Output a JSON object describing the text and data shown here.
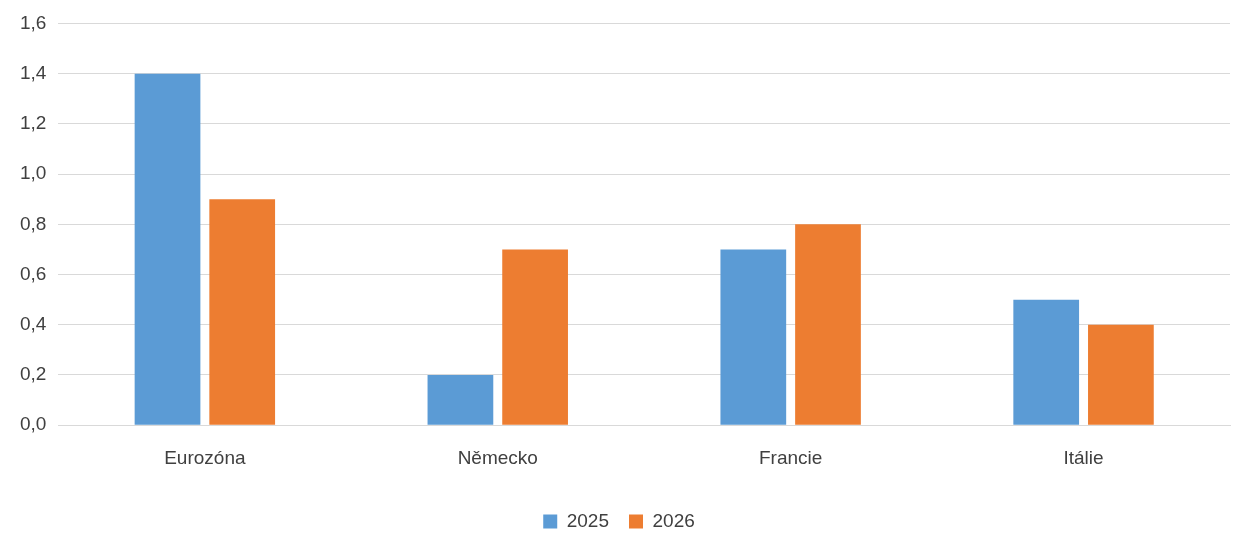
{
  "chart_data": {
    "type": "bar",
    "categories": [
      "Eurozóna",
      "Německo",
      "Francie",
      "Itálie"
    ],
    "series": [
      {
        "name": "2025",
        "color": "#5b9bd5",
        "values": [
          1.4,
          0.2,
          0.7,
          0.5
        ]
      },
      {
        "name": "2026",
        "color": "#ed7d31",
        "values": [
          0.9,
          0.7,
          0.8,
          0.4
        ]
      }
    ],
    "ylim": [
      0,
      1.6
    ],
    "yticks": [
      {
        "value": 0,
        "label": "0,0"
      },
      {
        "value": 0.2,
        "label": "0,2"
      },
      {
        "value": 0.4,
        "label": "0,4"
      },
      {
        "value": 0.6,
        "label": "0,6"
      },
      {
        "value": 0.8,
        "label": "0,8"
      },
      {
        "value": 1,
        "label": "1,0"
      },
      {
        "value": 1.2,
        "label": "1,2"
      },
      {
        "value": 1.4,
        "label": "1,4"
      },
      {
        "value": 1.6,
        "label": "1,6"
      }
    ],
    "grid": "y",
    "legend": "bottom"
  }
}
